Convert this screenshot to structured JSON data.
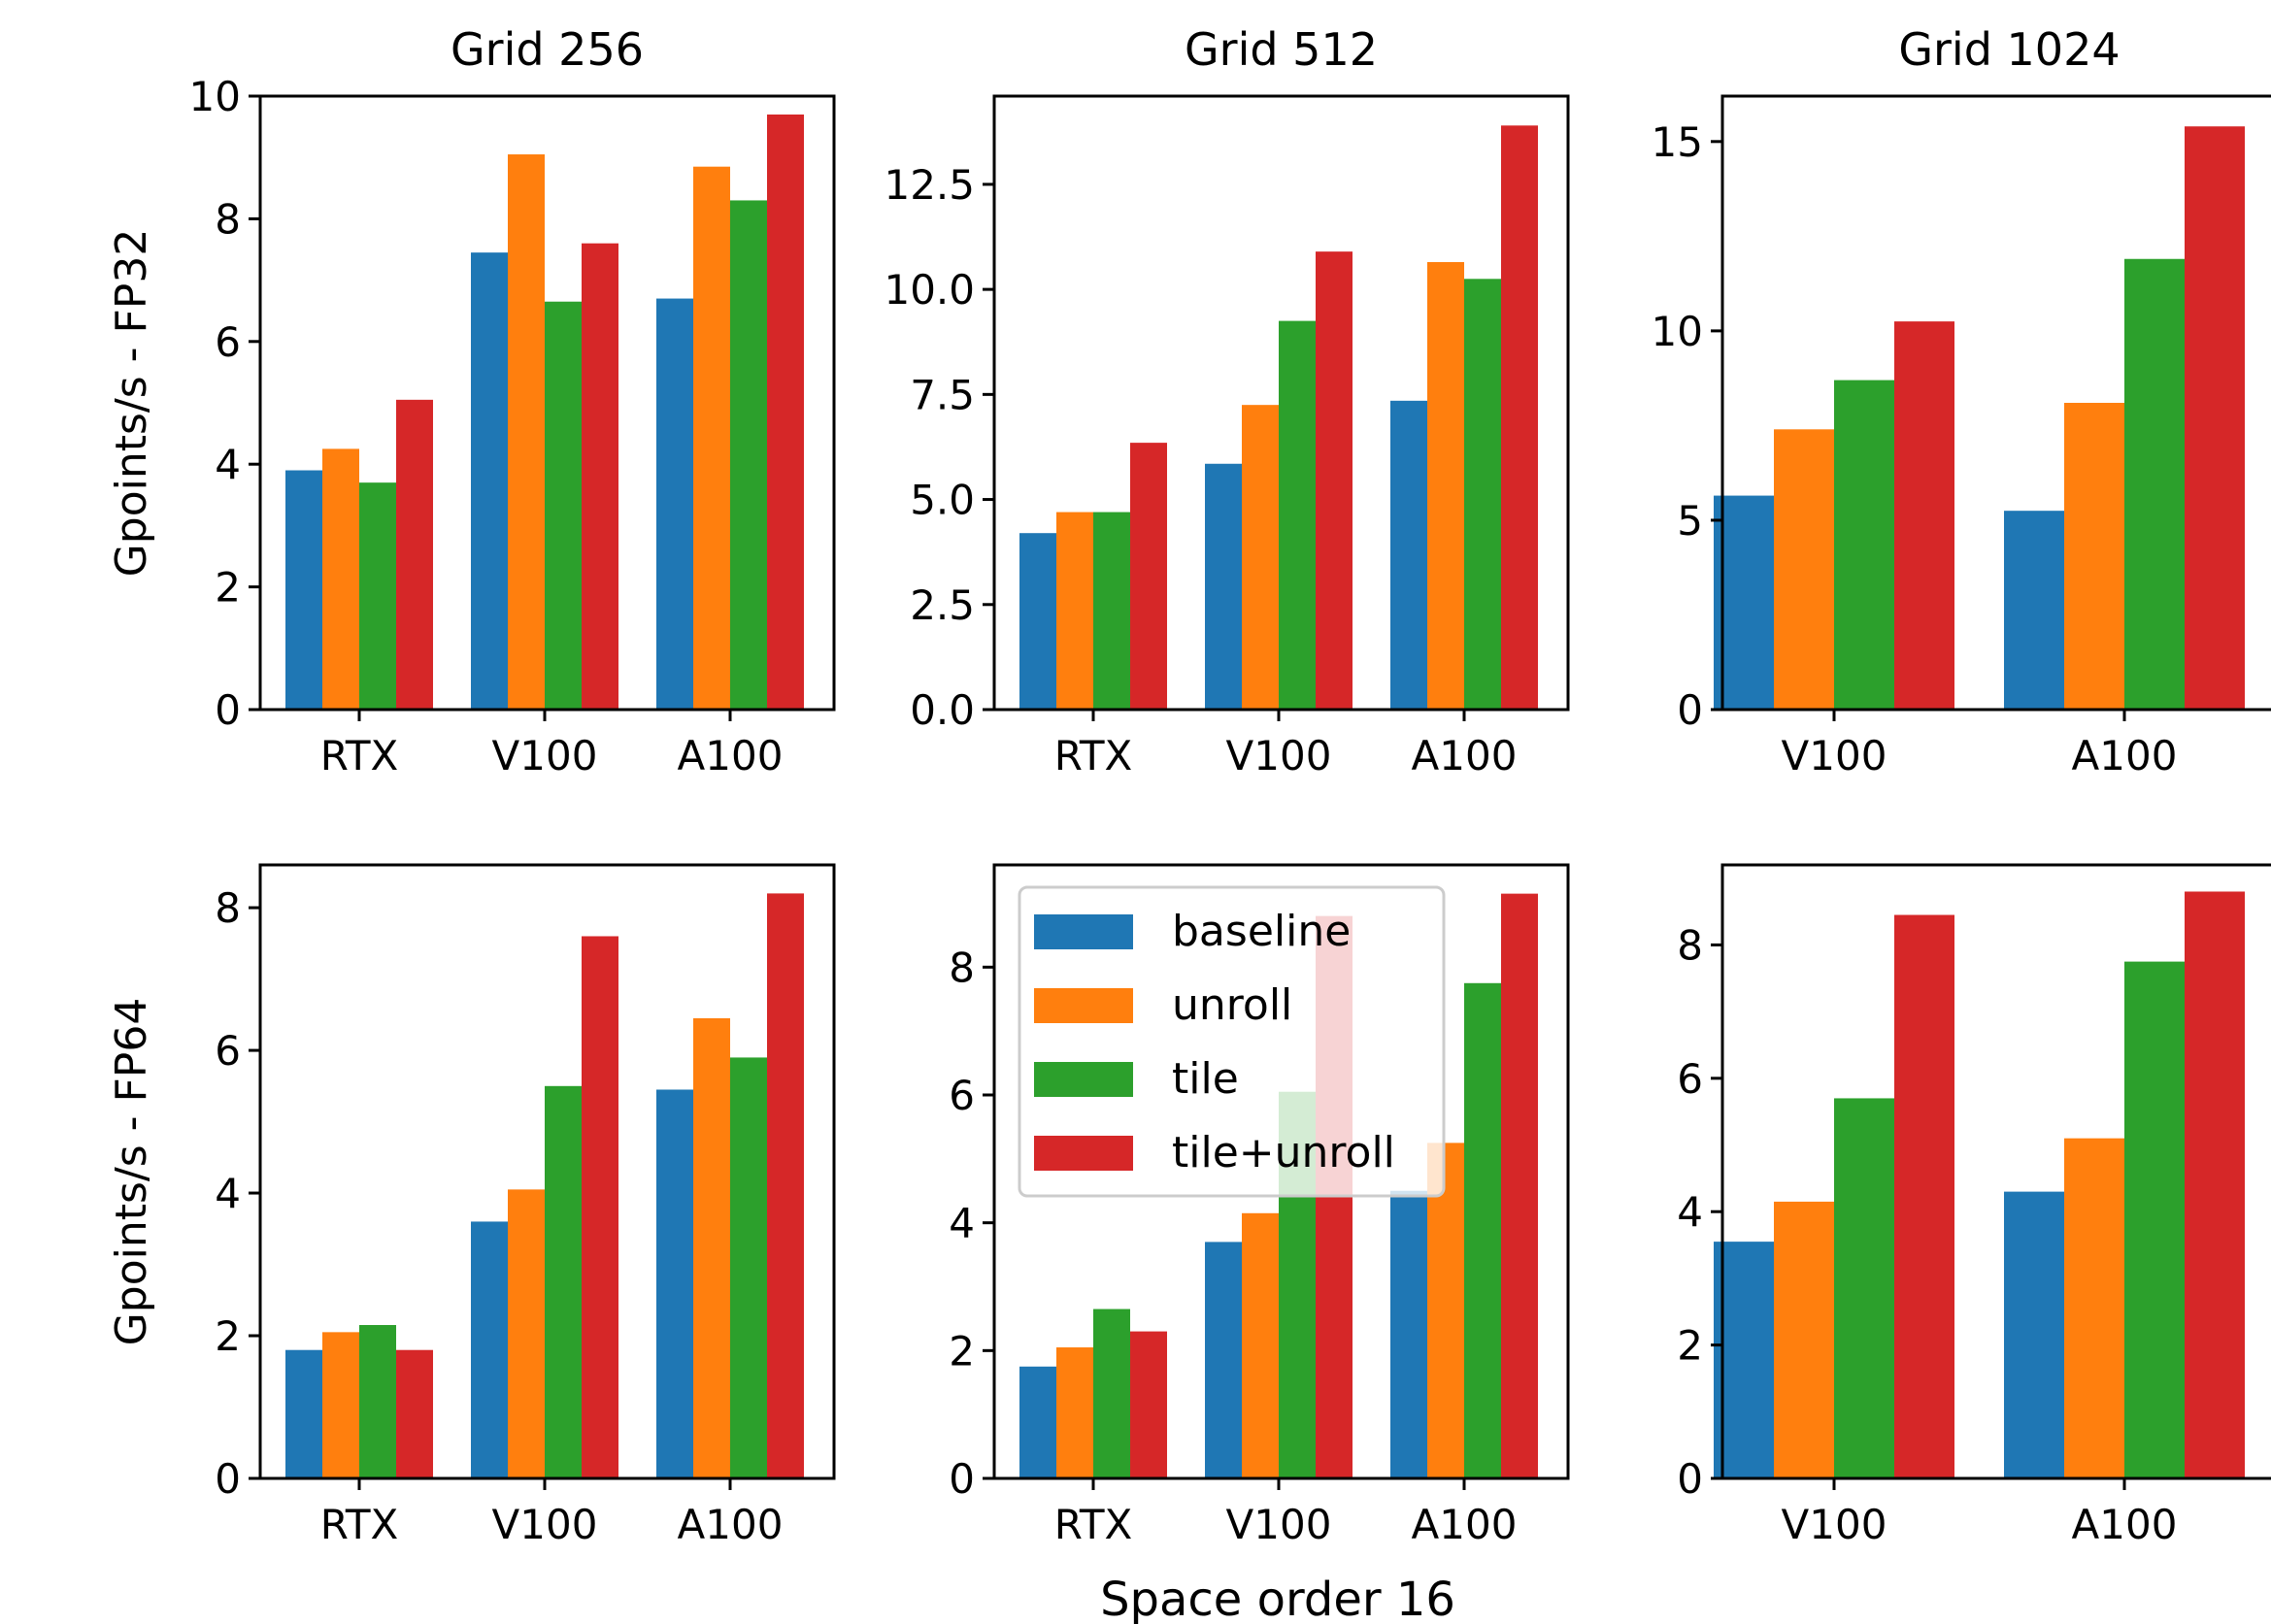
{
  "figure": {
    "xlabel": "Space order 16"
  },
  "legend": {
    "entries": [
      {
        "name": "baseline",
        "color": "#1f77b4"
      },
      {
        "name": "unroll",
        "color": "#ff7f0e"
      },
      {
        "name": "tile",
        "color": "#2ca02c"
      },
      {
        "name": "tile+unroll",
        "color": "#d62728"
      }
    ]
  },
  "chart_data": [
    {
      "type": "bar",
      "title": "Grid 256",
      "ylabel": "Gpoints/s - FP32",
      "categories": [
        "RTX",
        "V100",
        "A100"
      ],
      "ylim": [
        0,
        10
      ],
      "yticks": [
        0,
        2,
        4,
        6,
        8,
        10
      ],
      "ytick_labels": [
        "0",
        "2",
        "4",
        "6",
        "8",
        "10"
      ],
      "series": [
        {
          "name": "baseline",
          "values": [
            3.9,
            7.45,
            6.7
          ]
        },
        {
          "name": "unroll",
          "values": [
            4.25,
            9.05,
            8.85
          ]
        },
        {
          "name": "tile",
          "values": [
            3.7,
            6.65,
            8.3
          ]
        },
        {
          "name": "tile+unroll",
          "values": [
            5.05,
            7.6,
            9.7
          ]
        }
      ]
    },
    {
      "type": "bar",
      "title": "Grid 512",
      "ylabel": "",
      "categories": [
        "RTX",
        "V100",
        "A100"
      ],
      "ylim": [
        0,
        14.6
      ],
      "yticks": [
        0,
        2.5,
        5,
        7.5,
        10,
        12.5
      ],
      "ytick_labels": [
        "0.0",
        "2.5",
        "5.0",
        "7.5",
        "10.0",
        "12.5"
      ],
      "series": [
        {
          "name": "baseline",
          "values": [
            4.2,
            5.85,
            7.35
          ]
        },
        {
          "name": "unroll",
          "values": [
            4.7,
            7.25,
            10.65
          ]
        },
        {
          "name": "tile",
          "values": [
            4.7,
            9.25,
            10.25
          ]
        },
        {
          "name": "tile+unroll",
          "values": [
            6.35,
            10.9,
            13.9
          ]
        }
      ]
    },
    {
      "type": "bar",
      "title": "Grid 1024",
      "ylabel": "",
      "categories": [
        "V100",
        "A100"
      ],
      "ylim": [
        0,
        16.2
      ],
      "yticks": [
        0,
        5,
        10,
        15
      ],
      "ytick_labels": [
        "0",
        "5",
        "10",
        "15"
      ],
      "series": [
        {
          "name": "baseline",
          "values": [
            5.65,
            5.25
          ]
        },
        {
          "name": "unroll",
          "values": [
            7.4,
            8.1
          ]
        },
        {
          "name": "tile",
          "values": [
            8.7,
            11.9
          ]
        },
        {
          "name": "tile+unroll",
          "values": [
            10.25,
            15.4
          ]
        }
      ]
    },
    {
      "type": "bar",
      "title": "",
      "ylabel": "Gpoints/s - FP64",
      "categories": [
        "RTX",
        "V100",
        "A100"
      ],
      "ylim": [
        0,
        8.6
      ],
      "yticks": [
        0,
        2,
        4,
        6,
        8
      ],
      "ytick_labels": [
        "0",
        "2",
        "4",
        "6",
        "8"
      ],
      "series": [
        {
          "name": "baseline",
          "values": [
            1.8,
            3.6,
            5.45
          ]
        },
        {
          "name": "unroll",
          "values": [
            2.05,
            4.05,
            6.45
          ]
        },
        {
          "name": "tile",
          "values": [
            2.15,
            5.5,
            5.9
          ]
        },
        {
          "name": "tile+unroll",
          "values": [
            1.8,
            7.6,
            8.2
          ]
        }
      ]
    },
    {
      "type": "bar",
      "title": "",
      "ylabel": "",
      "categories": [
        "RTX",
        "V100",
        "A100"
      ],
      "ylim": [
        0,
        9.6
      ],
      "yticks": [
        0,
        2,
        4,
        6,
        8
      ],
      "ytick_labels": [
        "0",
        "2",
        "4",
        "6",
        "8"
      ],
      "series": [
        {
          "name": "baseline",
          "values": [
            1.75,
            3.7,
            4.5
          ]
        },
        {
          "name": "unroll",
          "values": [
            2.05,
            4.15,
            5.25
          ]
        },
        {
          "name": "tile",
          "values": [
            2.65,
            6.05,
            7.75
          ]
        },
        {
          "name": "tile+unroll",
          "values": [
            2.3,
            8.8,
            9.15
          ]
        }
      ]
    },
    {
      "type": "bar",
      "title": "",
      "ylabel": "",
      "categories": [
        "V100",
        "A100"
      ],
      "ylim": [
        0,
        9.2
      ],
      "yticks": [
        0,
        2,
        4,
        6,
        8
      ],
      "ytick_labels": [
        "0",
        "2",
        "4",
        "6",
        "8"
      ],
      "series": [
        {
          "name": "baseline",
          "values": [
            3.55,
            4.3
          ]
        },
        {
          "name": "unroll",
          "values": [
            4.15,
            5.1
          ]
        },
        {
          "name": "tile",
          "values": [
            5.7,
            7.75
          ]
        },
        {
          "name": "tile+unroll",
          "values": [
            8.45,
            8.8
          ]
        }
      ]
    }
  ]
}
